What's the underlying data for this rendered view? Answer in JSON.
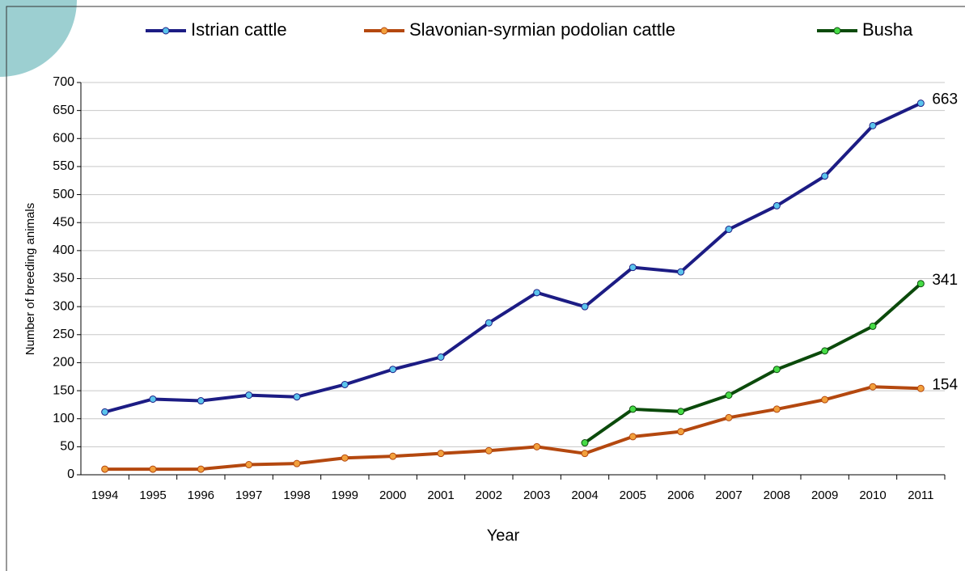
{
  "chart_data": {
    "type": "line",
    "x_label": "Year",
    "y_label": "Number of breeding animals",
    "categories": [
      "1994",
      "1995",
      "1996",
      "1997",
      "1998",
      "1999",
      "2000",
      "2001",
      "2002",
      "2003",
      "2004",
      "2005",
      "2006",
      "2007",
      "2008",
      "2009",
      "2010",
      "2011"
    ],
    "series": [
      {
        "name": "Istrian cattle",
        "color": "#1c1c84",
        "marker_color": "#5bc4ec",
        "values": [
          112,
          135,
          132,
          142,
          139,
          161,
          188,
          210,
          271,
          325,
          300,
          370,
          362,
          438,
          480,
          533,
          623,
          663
        ]
      },
      {
        "name": "Slavonian-syrmian podolian cattle",
        "color": "#b4480f",
        "marker_color": "#f2a03c",
        "values": [
          10,
          10,
          10,
          18,
          20,
          30,
          33,
          38,
          43,
          50,
          38,
          68,
          77,
          102,
          117,
          134,
          157,
          154
        ]
      },
      {
        "name": "Busha",
        "color": "#0b4a0b",
        "marker_color": "#46dc46",
        "values": [
          null,
          null,
          null,
          null,
          null,
          null,
          null,
          null,
          null,
          null,
          57,
          117,
          113,
          142,
          188,
          221,
          265,
          341
        ]
      }
    ],
    "ylim": [
      0,
      700
    ],
    "yticks": [
      0,
      50,
      100,
      150,
      200,
      250,
      300,
      350,
      400,
      450,
      500,
      550,
      600,
      650,
      700
    ],
    "grid": true,
    "legend": "top"
  }
}
